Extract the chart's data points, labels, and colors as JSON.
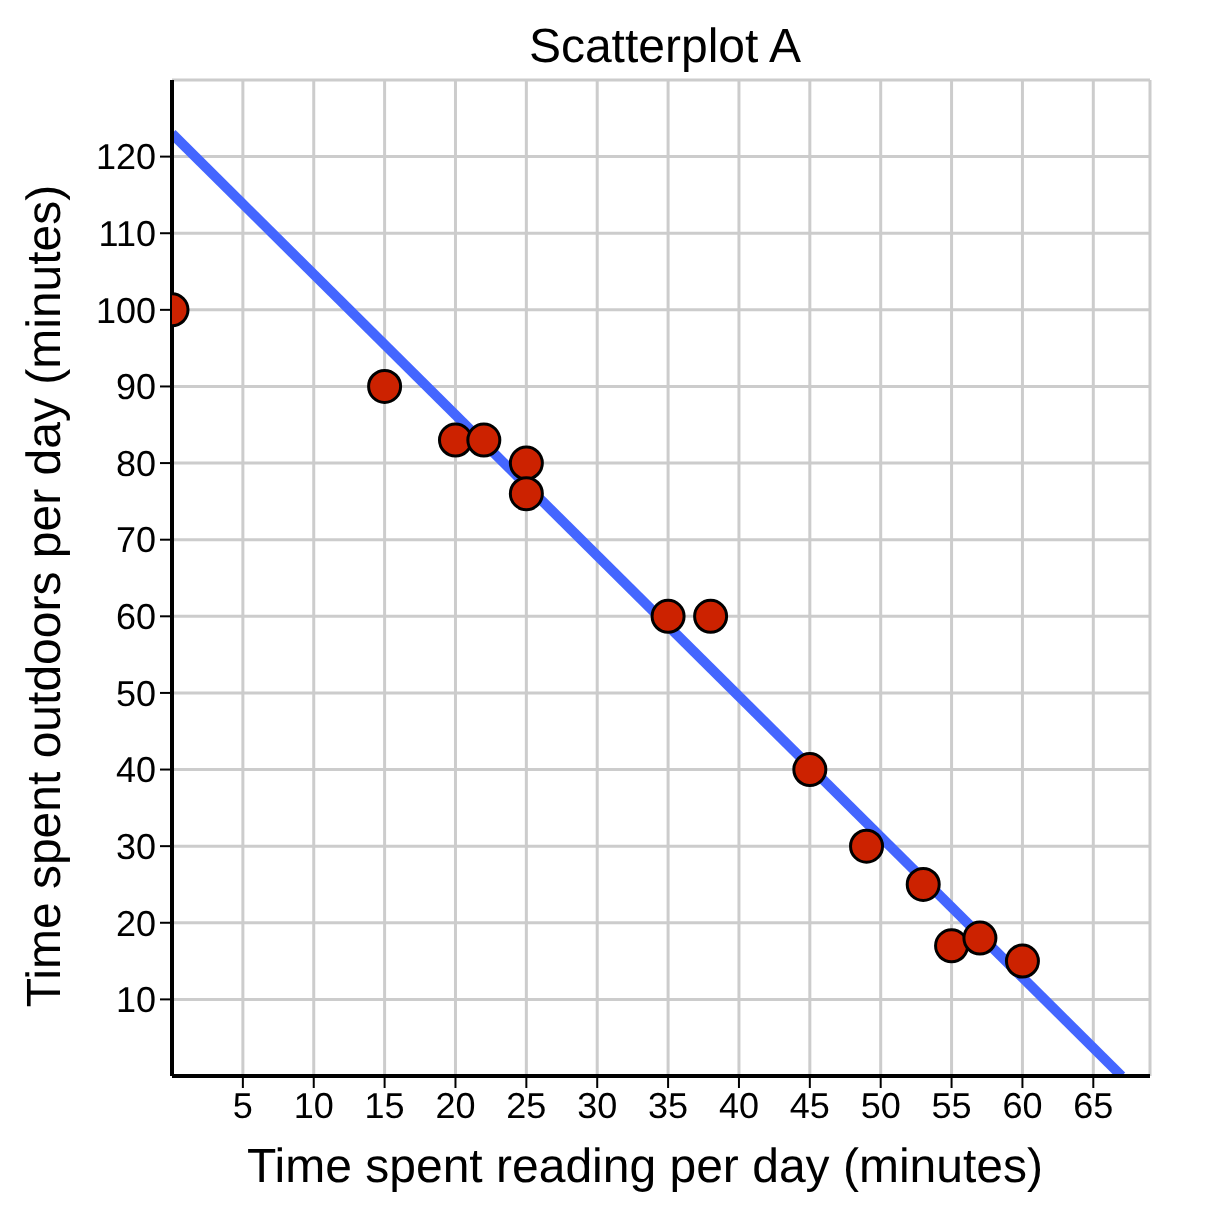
{
  "chart_data": {
    "type": "scatter",
    "title": "Scatterplot A",
    "xlabel": "Time spent reading per day (minutes)",
    "ylabel": "Time spent outdoors per day (minutes)",
    "xlim": [
      0,
      69
    ],
    "ylim": [
      0,
      130
    ],
    "xticks": [
      5,
      10,
      15,
      20,
      25,
      30,
      35,
      40,
      45,
      50,
      55,
      60,
      65
    ],
    "yticks": [
      10,
      20,
      30,
      40,
      50,
      60,
      70,
      80,
      90,
      100,
      110,
      120
    ],
    "grid": true,
    "legend": false,
    "series": [
      {
        "color": "#cc2200",
        "marker": "circle",
        "x": [
          0,
          15,
          20,
          22,
          25,
          25,
          35,
          38,
          45,
          49,
          53,
          55,
          57,
          60
        ],
        "values": [
          100,
          90,
          83,
          83,
          80,
          76,
          60,
          60,
          40,
          30,
          25,
          17,
          18,
          15
        ]
      },
      {
        "type": "line",
        "color": "#4466ff",
        "line_style": "solid",
        "x": [
          0,
          67
        ],
        "values": [
          123,
          0
        ]
      }
    ]
  }
}
